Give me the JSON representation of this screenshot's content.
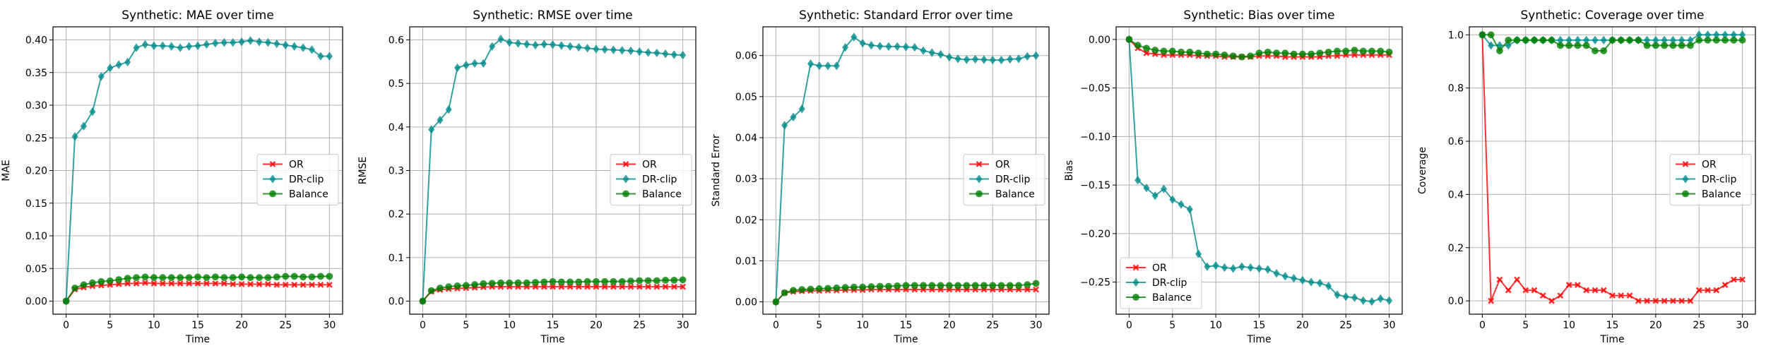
{
  "chart_data": [
    {
      "type": "line",
      "title": "Synthetic: MAE over time",
      "xlabel": "Time",
      "ylabel": "MAE",
      "xlim": [
        -1.5,
        31.5
      ],
      "ylim": [
        -0.02,
        0.42
      ],
      "xticks": [
        0,
        5,
        10,
        15,
        20,
        25,
        30
      ],
      "yticks": [
        0.0,
        0.05,
        0.1,
        0.15,
        0.2,
        0.25,
        0.3,
        0.35,
        0.4
      ],
      "ytick_labels": [
        "0.00",
        "0.05",
        "0.10",
        "0.15",
        "0.20",
        "0.25",
        "0.30",
        "0.35",
        "0.40"
      ],
      "grid": true,
      "legend_position": "center-right",
      "x": [
        0,
        1,
        2,
        3,
        4,
        5,
        6,
        7,
        8,
        9,
        10,
        11,
        12,
        13,
        14,
        15,
        16,
        17,
        18,
        19,
        20,
        21,
        22,
        23,
        24,
        25,
        26,
        27,
        28,
        29,
        30
      ],
      "series": [
        {
          "name": "OR",
          "color": "#ff0000",
          "marker": "x",
          "values": [
            0,
            0.018,
            0.021,
            0.023,
            0.024,
            0.025,
            0.026,
            0.027,
            0.027,
            0.028,
            0.027,
            0.027,
            0.027,
            0.027,
            0.027,
            0.027,
            0.027,
            0.027,
            0.027,
            0.026,
            0.026,
            0.026,
            0.026,
            0.026,
            0.025,
            0.025,
            0.025,
            0.025,
            0.025,
            0.025,
            0.025
          ]
        },
        {
          "name": "DR-clip",
          "color": "#008b8b",
          "marker": "diamond",
          "values": [
            0,
            0.252,
            0.268,
            0.29,
            0.344,
            0.357,
            0.362,
            0.366,
            0.388,
            0.393,
            0.391,
            0.391,
            0.39,
            0.388,
            0.39,
            0.391,
            0.393,
            0.395,
            0.396,
            0.396,
            0.397,
            0.399,
            0.397,
            0.396,
            0.394,
            0.392,
            0.39,
            0.388,
            0.385,
            0.375,
            0.375
          ]
        },
        {
          "name": "Balance",
          "color": "#008000",
          "marker": "circle",
          "values": [
            0,
            0.02,
            0.025,
            0.028,
            0.03,
            0.031,
            0.033,
            0.035,
            0.036,
            0.037,
            0.036,
            0.036,
            0.036,
            0.036,
            0.036,
            0.037,
            0.036,
            0.037,
            0.036,
            0.036,
            0.037,
            0.036,
            0.036,
            0.036,
            0.037,
            0.038,
            0.038,
            0.037,
            0.037,
            0.038,
            0.038
          ]
        }
      ]
    },
    {
      "type": "line",
      "title": "Synthetic: RMSE over time",
      "xlabel": "Time",
      "ylabel": "RMSE",
      "xlim": [
        -1.5,
        31.5
      ],
      "ylim": [
        -0.03,
        0.63
      ],
      "xticks": [
        0,
        5,
        10,
        15,
        20,
        25,
        30
      ],
      "yticks": [
        0.0,
        0.1,
        0.2,
        0.3,
        0.4,
        0.5,
        0.6
      ],
      "ytick_labels": [
        "0.0",
        "0.1",
        "0.2",
        "0.3",
        "0.4",
        "0.5",
        "0.6"
      ],
      "grid": true,
      "legend_position": "center-right",
      "x": [
        0,
        1,
        2,
        3,
        4,
        5,
        6,
        7,
        8,
        9,
        10,
        11,
        12,
        13,
        14,
        15,
        16,
        17,
        18,
        19,
        20,
        21,
        22,
        23,
        24,
        25,
        26,
        27,
        28,
        29,
        30
      ],
      "series": [
        {
          "name": "OR",
          "color": "#ff0000",
          "marker": "x",
          "values": [
            0,
            0.022,
            0.026,
            0.028,
            0.029,
            0.03,
            0.031,
            0.032,
            0.033,
            0.033,
            0.033,
            0.033,
            0.033,
            0.033,
            0.033,
            0.033,
            0.033,
            0.033,
            0.033,
            0.033,
            0.033,
            0.033,
            0.033,
            0.033,
            0.033,
            0.033,
            0.033,
            0.033,
            0.033,
            0.033,
            0.033
          ]
        },
        {
          "name": "DR-clip",
          "color": "#008b8b",
          "marker": "diamond",
          "values": [
            0,
            0.394,
            0.416,
            0.44,
            0.536,
            0.542,
            0.546,
            0.546,
            0.585,
            0.602,
            0.594,
            0.592,
            0.59,
            0.588,
            0.59,
            0.589,
            0.587,
            0.585,
            0.583,
            0.581,
            0.579,
            0.578,
            0.577,
            0.576,
            0.575,
            0.573,
            0.571,
            0.57,
            0.568,
            0.566,
            0.565
          ]
        },
        {
          "name": "Balance",
          "color": "#008000",
          "marker": "circle",
          "values": [
            0,
            0.024,
            0.03,
            0.033,
            0.035,
            0.036,
            0.038,
            0.04,
            0.041,
            0.042,
            0.042,
            0.042,
            0.042,
            0.043,
            0.044,
            0.045,
            0.044,
            0.044,
            0.044,
            0.045,
            0.045,
            0.045,
            0.045,
            0.045,
            0.046,
            0.047,
            0.047,
            0.047,
            0.048,
            0.048,
            0.049
          ]
        }
      ]
    },
    {
      "type": "line",
      "title": "Synthetic: Standard Error over time",
      "xlabel": "Time",
      "ylabel": "Standard Error",
      "xlim": [
        -1.5,
        31.5
      ],
      "ylim": [
        -0.003,
        0.067
      ],
      "xticks": [
        0,
        5,
        10,
        15,
        20,
        25,
        30
      ],
      "yticks": [
        0.0,
        0.01,
        0.02,
        0.03,
        0.04,
        0.05,
        0.06
      ],
      "ytick_labels": [
        "0.00",
        "0.01",
        "0.02",
        "0.03",
        "0.04",
        "0.05",
        "0.06"
      ],
      "grid": true,
      "legend_position": "center-right",
      "x": [
        0,
        1,
        2,
        3,
        4,
        5,
        6,
        7,
        8,
        9,
        10,
        11,
        12,
        13,
        14,
        15,
        16,
        17,
        18,
        19,
        20,
        21,
        22,
        23,
        24,
        25,
        26,
        27,
        28,
        29,
        30
      ],
      "series": [
        {
          "name": "OR",
          "color": "#ff0000",
          "marker": "x",
          "values": [
            0,
            0.0022,
            0.0025,
            0.0026,
            0.0027,
            0.0027,
            0.0028,
            0.0028,
            0.0029,
            0.0029,
            0.0029,
            0.003,
            0.003,
            0.003,
            0.003,
            0.003,
            0.003,
            0.003,
            0.003,
            0.003,
            0.003,
            0.003,
            0.003,
            0.003,
            0.003,
            0.003,
            0.003,
            0.003,
            0.003,
            0.003,
            0.003
          ]
        },
        {
          "name": "DR-clip",
          "color": "#008b8b",
          "marker": "diamond",
          "values": [
            0,
            0.043,
            0.045,
            0.047,
            0.058,
            0.0575,
            0.0575,
            0.0575,
            0.062,
            0.0645,
            0.063,
            0.0625,
            0.0623,
            0.0622,
            0.0622,
            0.0621,
            0.062,
            0.0612,
            0.0607,
            0.0603,
            0.0596,
            0.0592,
            0.059,
            0.0591,
            0.059,
            0.0589,
            0.0589,
            0.0591,
            0.0592,
            0.0598,
            0.06
          ]
        },
        {
          "name": "Balance",
          "color": "#008000",
          "marker": "circle",
          "values": [
            0,
            0.0022,
            0.0028,
            0.003,
            0.0031,
            0.0032,
            0.0033,
            0.0034,
            0.0035,
            0.0036,
            0.0036,
            0.0037,
            0.0038,
            0.0038,
            0.0039,
            0.004,
            0.004,
            0.004,
            0.004,
            0.004,
            0.004,
            0.004,
            0.004,
            0.004,
            0.004,
            0.004,
            0.004,
            0.004,
            0.004,
            0.0042,
            0.0045
          ]
        }
      ]
    },
    {
      "type": "line",
      "title": "Synthetic: Bias over time",
      "xlabel": "Time",
      "ylabel": "Bias",
      "xlim": [
        -1.5,
        31.5
      ],
      "ylim": [
        -0.283,
        0.013
      ],
      "xticks": [
        0,
        5,
        10,
        15,
        20,
        25,
        30
      ],
      "yticks": [
        0.0,
        -0.05,
        -0.1,
        -0.15,
        -0.2,
        -0.25
      ],
      "ytick_labels": [
        "0.00",
        "−0.05",
        "−0.10",
        "−0.15",
        "−0.20",
        "−0.25"
      ],
      "grid": true,
      "legend_position": "lower-left",
      "x": [
        0,
        1,
        2,
        3,
        4,
        5,
        6,
        7,
        8,
        9,
        10,
        11,
        12,
        13,
        14,
        15,
        16,
        17,
        18,
        19,
        20,
        21,
        22,
        23,
        24,
        25,
        26,
        27,
        28,
        29,
        30
      ],
      "series": [
        {
          "name": "OR",
          "color": "#ff0000",
          "marker": "x",
          "values": [
            0,
            -0.009,
            -0.014,
            -0.015,
            -0.016,
            -0.016,
            -0.016,
            -0.016,
            -0.017,
            -0.017,
            -0.017,
            -0.018,
            -0.018,
            -0.018,
            -0.018,
            -0.017,
            -0.017,
            -0.017,
            -0.018,
            -0.018,
            -0.018,
            -0.018,
            -0.018,
            -0.017,
            -0.017,
            -0.016,
            -0.016,
            -0.016,
            -0.016,
            -0.016,
            -0.016
          ]
        },
        {
          "name": "DR-clip",
          "color": "#008b8b",
          "marker": "diamond",
          "values": [
            0,
            -0.145,
            -0.153,
            -0.161,
            -0.154,
            -0.165,
            -0.17,
            -0.175,
            -0.221,
            -0.234,
            -0.233,
            -0.235,
            -0.236,
            -0.234,
            -0.235,
            -0.236,
            -0.237,
            -0.241,
            -0.244,
            -0.246,
            -0.248,
            -0.25,
            -0.251,
            -0.254,
            -0.263,
            -0.265,
            -0.266,
            -0.269,
            -0.27,
            -0.267,
            -0.269
          ]
        },
        {
          "name": "Balance",
          "color": "#008000",
          "marker": "circle",
          "values": [
            0,
            -0.006,
            -0.009,
            -0.011,
            -0.012,
            -0.012,
            -0.013,
            -0.013,
            -0.014,
            -0.015,
            -0.015,
            -0.016,
            -0.017,
            -0.018,
            -0.017,
            -0.014,
            -0.013,
            -0.014,
            -0.014,
            -0.015,
            -0.015,
            -0.015,
            -0.014,
            -0.013,
            -0.012,
            -0.012,
            -0.011,
            -0.012,
            -0.012,
            -0.012,
            -0.013
          ]
        }
      ]
    },
    {
      "type": "line",
      "title": "Synthetic: Coverage over time",
      "xlabel": "Time",
      "ylabel": "Coverage",
      "xlim": [
        -1.5,
        31.5
      ],
      "ylim": [
        -0.05,
        1.03
      ],
      "xticks": [
        0,
        5,
        10,
        15,
        20,
        25,
        30
      ],
      "yticks": [
        0.0,
        0.2,
        0.4,
        0.6,
        0.8,
        1.0
      ],
      "ytick_labels": [
        "0.0",
        "0.2",
        "0.4",
        "0.6",
        "0.8",
        "1.0"
      ],
      "grid": true,
      "legend_position": "center-right",
      "x": [
        0,
        1,
        2,
        3,
        4,
        5,
        6,
        7,
        8,
        9,
        10,
        11,
        12,
        13,
        14,
        15,
        16,
        17,
        18,
        19,
        20,
        21,
        22,
        23,
        24,
        25,
        26,
        27,
        28,
        29,
        30
      ],
      "series": [
        {
          "name": "OR",
          "color": "#ff0000",
          "marker": "x",
          "values": [
            1.0,
            0.0,
            0.08,
            0.04,
            0.08,
            0.04,
            0.04,
            0.02,
            0.0,
            0.02,
            0.06,
            0.06,
            0.04,
            0.04,
            0.04,
            0.02,
            0.02,
            0.02,
            0.0,
            0.0,
            0.0,
            0.0,
            0.0,
            0.0,
            0.0,
            0.04,
            0.04,
            0.04,
            0.06,
            0.08,
            0.08
          ]
        },
        {
          "name": "DR-clip",
          "color": "#008b8b",
          "marker": "diamond",
          "values": [
            1.0,
            0.96,
            0.96,
            0.96,
            0.98,
            0.98,
            0.98,
            0.98,
            0.98,
            0.98,
            0.98,
            0.98,
            0.98,
            0.98,
            0.98,
            0.98,
            0.98,
            0.98,
            0.98,
            0.98,
            0.98,
            0.98,
            0.98,
            0.98,
            0.98,
            1.0,
            1.0,
            1.0,
            1.0,
            1.0,
            1.0
          ]
        },
        {
          "name": "Balance",
          "color": "#008000",
          "marker": "circle",
          "values": [
            1.0,
            1.0,
            0.94,
            0.98,
            0.98,
            0.98,
            0.98,
            0.98,
            0.98,
            0.96,
            0.96,
            0.96,
            0.96,
            0.94,
            0.94,
            0.98,
            0.98,
            0.98,
            0.98,
            0.96,
            0.96,
            0.96,
            0.96,
            0.96,
            0.96,
            0.98,
            0.98,
            0.98,
            0.98,
            0.98,
            0.98
          ]
        }
      ]
    }
  ]
}
